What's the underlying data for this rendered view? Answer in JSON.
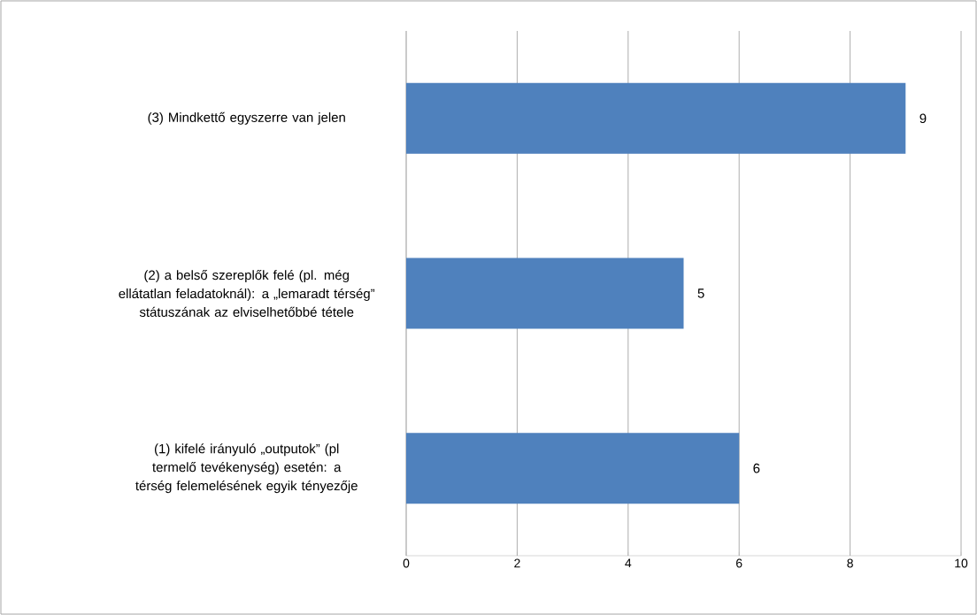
{
  "chart_data": {
    "type": "bar",
    "orientation": "horizontal",
    "categories": [
      "(3) Mindkettő egyszerre van jelen",
      "(2) a belső szereplők felé (pl. még ellátatlan feladatoknál): a „lemaradt térség” státuszának az elviselhetőbbé tétele",
      "(1) kifelé irányuló „outputok” (pl termelő tevékenység) esetén: a térség felemelésének egyik tényezője"
    ],
    "values": [
      9,
      5,
      6
    ],
    "color": "#4f81bd",
    "data_labels": true,
    "xlim": [
      0,
      10
    ],
    "xticks": [
      0,
      2,
      4,
      6,
      8,
      10
    ],
    "grid": "x"
  }
}
